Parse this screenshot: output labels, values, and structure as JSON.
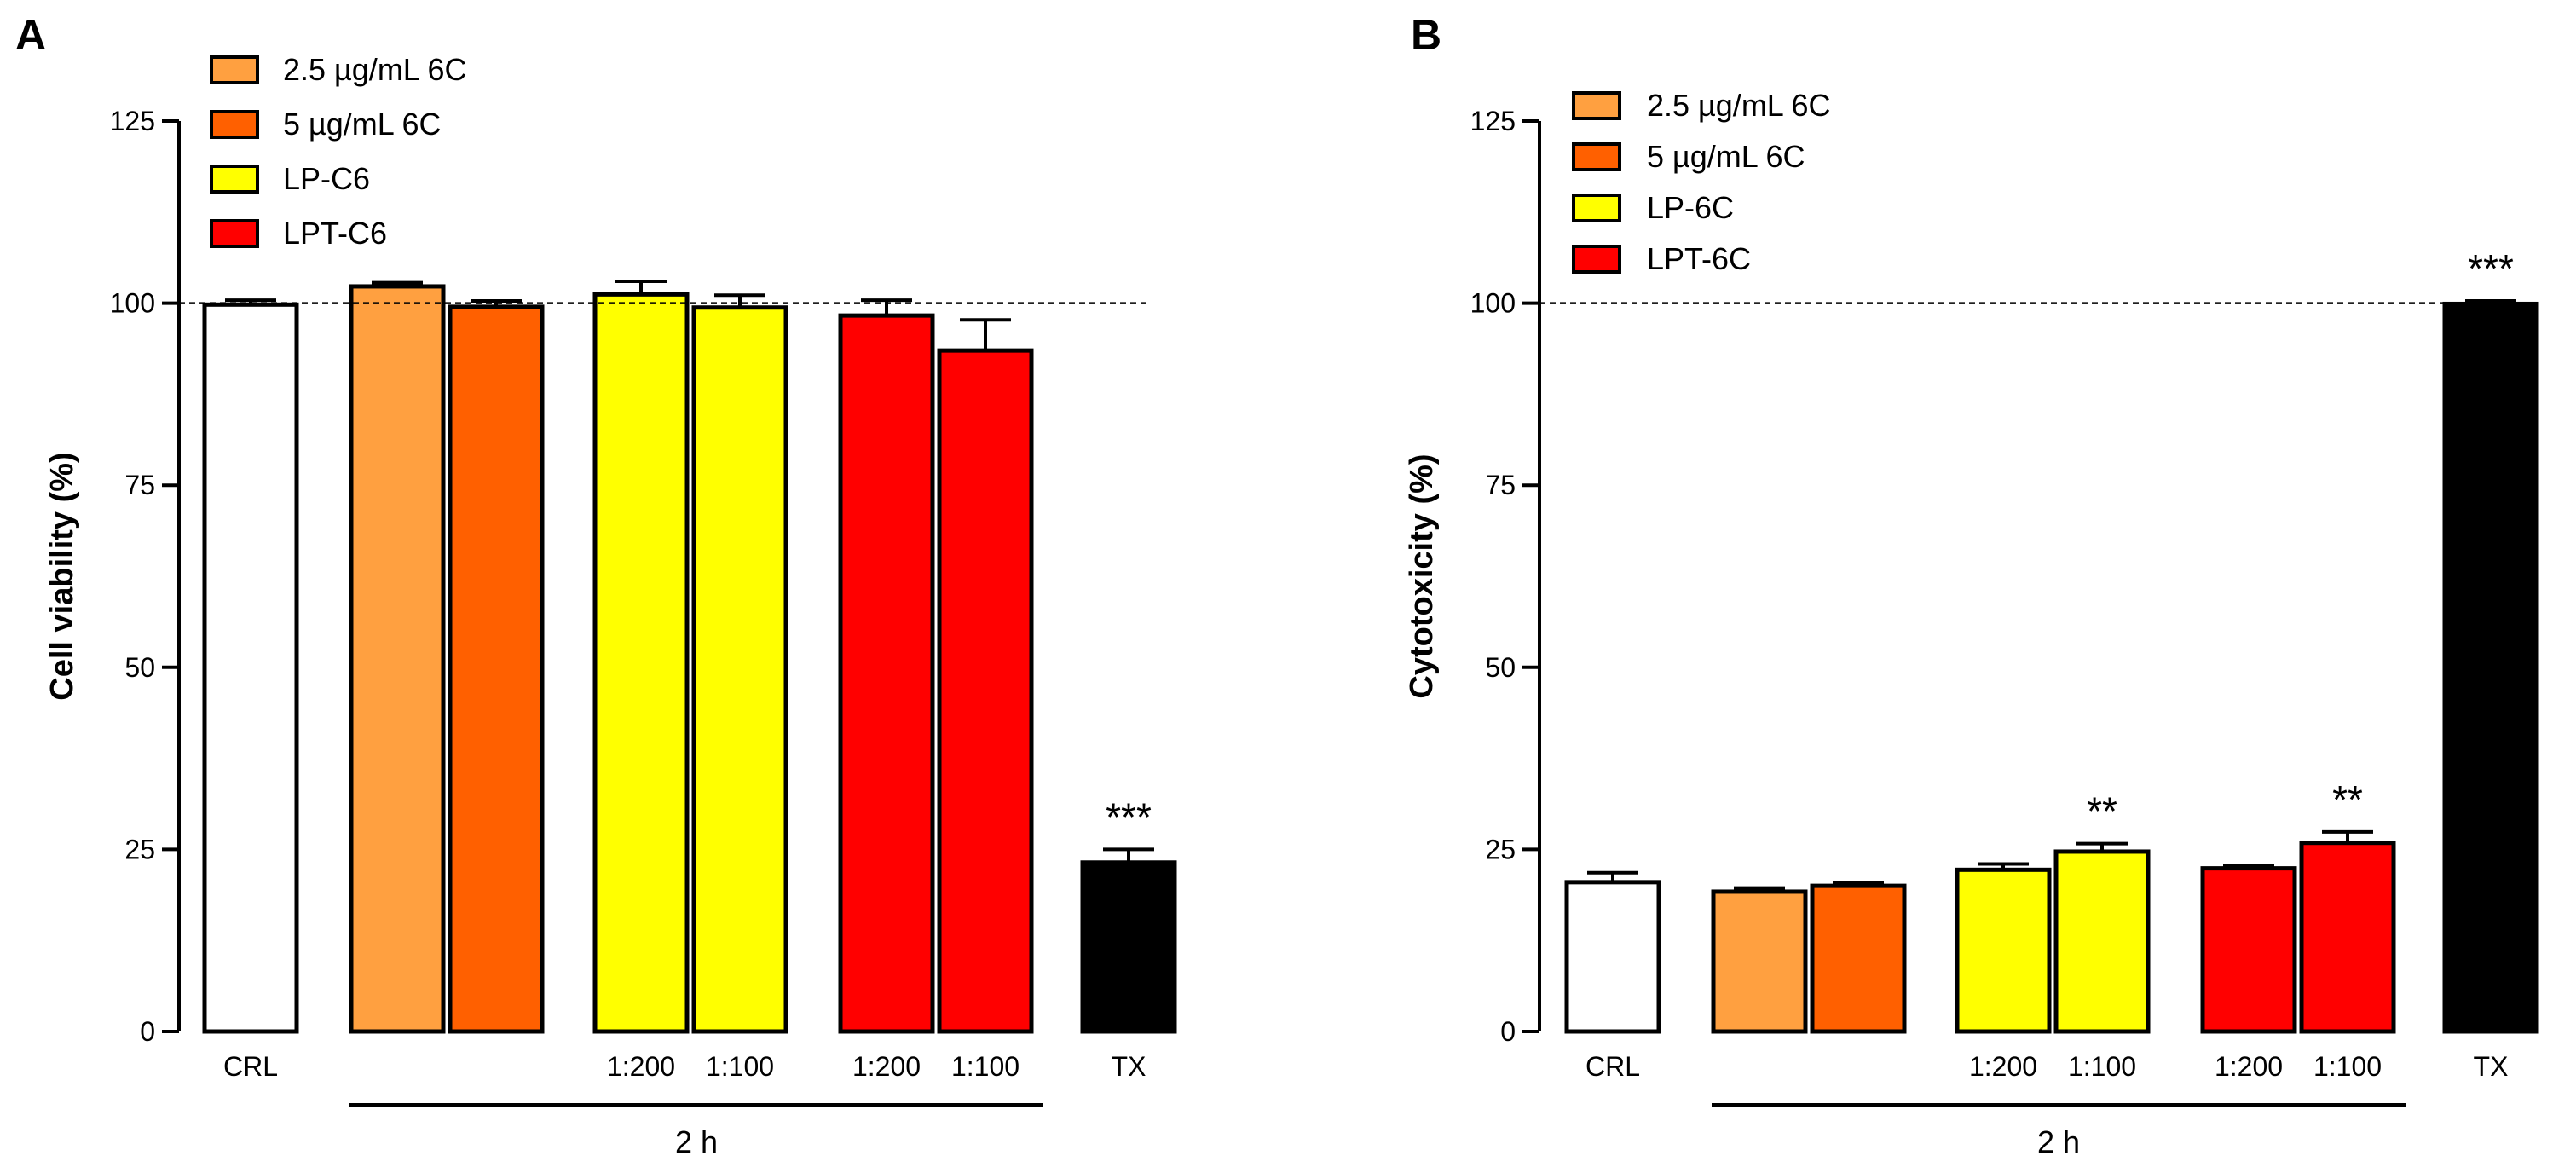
{
  "chart_data": [
    {
      "type": "bar",
      "panel_label": "A",
      "ylabel": "Cell viability (%)",
      "ylim": [
        0,
        125
      ],
      "yticks": [
        0,
        25,
        50,
        75,
        100,
        125
      ],
      "reference_line": 100,
      "legend": [
        {
          "label": "2.5 µg/mL 6C",
          "color": "#FFA040"
        },
        {
          "label": "5 µg/mL 6C",
          "color": "#FF6000"
        },
        {
          "label": "LP-C6",
          "color": "#FFFF00"
        },
        {
          "label": "LPT-C6",
          "color": "#FF0000"
        }
      ],
      "bars": [
        {
          "label": "CRL",
          "value": 99.8,
          "error": 0.6,
          "color": "#FFFFFF",
          "sig": ""
        },
        {
          "label": "",
          "value": 102.3,
          "error": 0.5,
          "color": "#FFA040",
          "sig": ""
        },
        {
          "label": "",
          "value": 99.5,
          "error": 0.8,
          "color": "#FF6000",
          "sig": ""
        },
        {
          "label": "1:200",
          "value": 101.2,
          "error": 1.8,
          "color": "#FFFF00",
          "sig": ""
        },
        {
          "label": "1:100",
          "value": 99.4,
          "error": 1.7,
          "color": "#FFFF00",
          "sig": ""
        },
        {
          "label": "1:200",
          "value": 98.3,
          "error": 2.1,
          "color": "#FF0000",
          "sig": ""
        },
        {
          "label": "1:100",
          "value": 93.5,
          "error": 4.2,
          "color": "#FF0000",
          "sig": ""
        },
        {
          "label": "TX",
          "value": 23.2,
          "error": 1.8,
          "color": "#000000",
          "sig": "***"
        }
      ],
      "group_label": "2 h"
    },
    {
      "type": "bar",
      "panel_label": "B",
      "ylabel": "Cytotoxicity (%)",
      "ylim": [
        0,
        125
      ],
      "yticks": [
        0,
        25,
        50,
        75,
        100,
        125
      ],
      "reference_line": 100,
      "legend": [
        {
          "label": "2.5 µg/mL 6C",
          "color": "#FFA040"
        },
        {
          "label": "5 µg/mL 6C",
          "color": "#FF6000"
        },
        {
          "label": "LP-6C",
          "color": "#FFFF00"
        },
        {
          "label": "LPT-6C",
          "color": "#FF0000"
        }
      ],
      "bars": [
        {
          "label": "CRL",
          "value": 20.5,
          "error": 1.3,
          "color": "#FFFFFF",
          "sig": ""
        },
        {
          "label": "",
          "value": 19.2,
          "error": 0.5,
          "color": "#FFA040",
          "sig": ""
        },
        {
          "label": "",
          "value": 20.0,
          "error": 0.4,
          "color": "#FF6000",
          "sig": ""
        },
        {
          "label": "1:200",
          "value": 22.2,
          "error": 0.8,
          "color": "#FFFF00",
          "sig": ""
        },
        {
          "label": "1:100",
          "value": 24.7,
          "error": 1.1,
          "color": "#FFFF00",
          "sig": "**"
        },
        {
          "label": "1:200",
          "value": 22.4,
          "error": 0.3,
          "color": "#FF0000",
          "sig": ""
        },
        {
          "label": "1:100",
          "value": 25.9,
          "error": 1.5,
          "color": "#FF0000",
          "sig": "**"
        },
        {
          "label": "TX",
          "value": 99.9,
          "error": 0.4,
          "color": "#000000",
          "sig": "***"
        }
      ],
      "group_label": "2 h"
    }
  ]
}
